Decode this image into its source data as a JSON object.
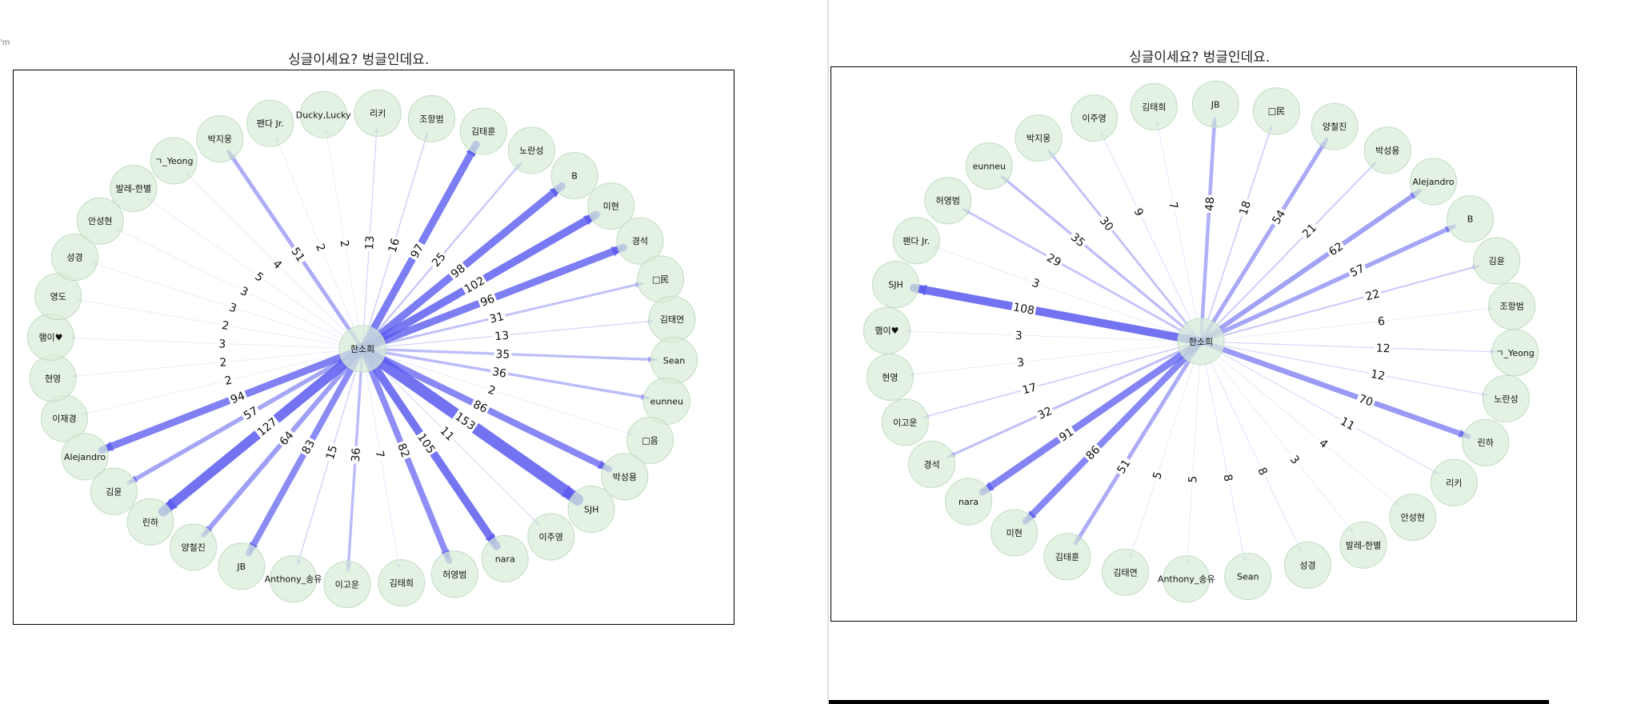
{
  "chart_data": [
    {
      "type": "network",
      "title": "싱글이세요? 벙글인데요.",
      "center": "한소희",
      "edges": [
        {
          "target": "이재경",
          "weight": 2
        },
        {
          "target": "현영",
          "weight": 2
        },
        {
          "target": "햄이♥",
          "weight": 3
        },
        {
          "target": "영도",
          "weight": 2
        },
        {
          "target": "성경",
          "weight": 3
        },
        {
          "target": "안성현",
          "weight": 3
        },
        {
          "target": "발레-한별",
          "weight": 5
        },
        {
          "target": "ㄱ_Yeong",
          "weight": 4
        },
        {
          "target": "박지웅",
          "weight": 51
        },
        {
          "target": "팬다 Jr.",
          "weight": 2
        },
        {
          "target": "Ducky,Lucky",
          "weight": 2
        },
        {
          "target": "리키",
          "weight": 13
        },
        {
          "target": "조항범",
          "weight": 16
        },
        {
          "target": "김태훈",
          "weight": 97
        },
        {
          "target": "노란성",
          "weight": 25
        },
        {
          "target": "B",
          "weight": 98
        },
        {
          "target": "미현",
          "weight": 102
        },
        {
          "target": "경석",
          "weight": 96
        },
        {
          "target": "□民",
          "weight": 31
        },
        {
          "target": "김태연",
          "weight": 13
        },
        {
          "target": "Sean",
          "weight": 35
        },
        {
          "target": "eunneu",
          "weight": 36
        },
        {
          "target": "□음",
          "weight": 2
        },
        {
          "target": "박성용",
          "weight": 86
        },
        {
          "target": "SJH",
          "weight": 153
        },
        {
          "target": "이주영",
          "weight": 11
        },
        {
          "target": "nara",
          "weight": 105
        },
        {
          "target": "허영범",
          "weight": 82
        },
        {
          "target": "김태희",
          "weight": 7
        },
        {
          "target": "이고운",
          "weight": 36
        },
        {
          "target": "Anthony_송유",
          "weight": 15
        },
        {
          "target": "JB",
          "weight": 83
        },
        {
          "target": "양철진",
          "weight": 64
        },
        {
          "target": "린하",
          "weight": 127
        },
        {
          "target": "김윤",
          "weight": 57
        },
        {
          "target": "Alejandro",
          "weight": 94
        }
      ]
    },
    {
      "type": "network",
      "title": "싱글이세요? 벙글인데요.",
      "center": "한소희",
      "edges": [
        {
          "target": "현영",
          "weight": 3
        },
        {
          "target": "햄이♥",
          "weight": 3
        },
        {
          "target": "SJH",
          "weight": 108
        },
        {
          "target": "팬다 Jr.",
          "weight": 3
        },
        {
          "target": "허영범",
          "weight": 29
        },
        {
          "target": "eunneu",
          "weight": 35
        },
        {
          "target": "박지웅",
          "weight": 30
        },
        {
          "target": "이주영",
          "weight": 9
        },
        {
          "target": "김태희",
          "weight": 7
        },
        {
          "target": "JB",
          "weight": 48
        },
        {
          "target": "□民",
          "weight": 18
        },
        {
          "target": "양철진",
          "weight": 54
        },
        {
          "target": "박성용",
          "weight": 21
        },
        {
          "target": "Alejandro",
          "weight": 62
        },
        {
          "target": "B",
          "weight": 57
        },
        {
          "target": "김윤",
          "weight": 22
        },
        {
          "target": "조항범",
          "weight": 6
        },
        {
          "target": "ㄱ_Yeong",
          "weight": 12
        },
        {
          "target": "노란성",
          "weight": 12
        },
        {
          "target": "린하",
          "weight": 70
        },
        {
          "target": "리키",
          "weight": 11
        },
        {
          "target": "안성현",
          "weight": 4
        },
        {
          "target": "발레-한별",
          "weight": 3
        },
        {
          "target": "성경",
          "weight": 8
        },
        {
          "target": "Sean",
          "weight": 8
        },
        {
          "target": "Anthony_송유",
          "weight": 5
        },
        {
          "target": "김태연",
          "weight": 5
        },
        {
          "target": "김태훈",
          "weight": 51
        },
        {
          "target": "미현",
          "weight": 86
        },
        {
          "target": "nara",
          "weight": 91
        },
        {
          "target": "경석",
          "weight": 32
        },
        {
          "target": "이고운",
          "weight": 17
        }
      ]
    }
  ],
  "colors": {
    "node_fill": "#d9ecd9",
    "node_stroke": "#c2dcc2",
    "edge": "#5a5af0",
    "frame": "#000000"
  },
  "edge_strip": {
    "text": "'m"
  }
}
